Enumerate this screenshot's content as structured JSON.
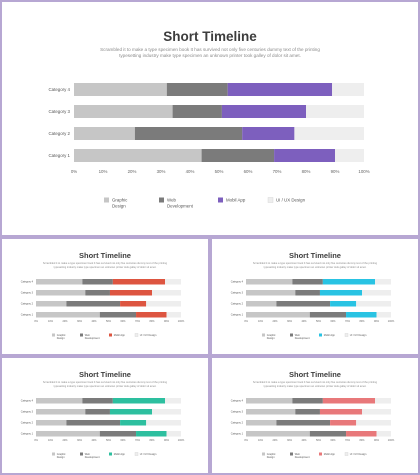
{
  "slide": {
    "title": "Short Timeline",
    "subtitle": "Scrambled it to make a type specimen book It has survived not only five centuries dummy text of the printing typesetting industry make type specimen an unknown printer took galley of dolor sit amet."
  },
  "chart_data": [
    {
      "type": "bar",
      "stacked": true,
      "orientation": "horizontal",
      "categories": [
        "Category 4",
        "Category 3",
        "Category 2",
        "Category 1"
      ],
      "series": [
        {
          "name": "Graphic Design",
          "values": [
            32,
            34,
            21,
            44
          ]
        },
        {
          "name": "Web Development",
          "values": [
            21,
            17,
            37,
            25
          ]
        },
        {
          "name": "Mobil App",
          "values": [
            36,
            29,
            18,
            21
          ]
        },
        {
          "name": "UI / UX Design",
          "values": [
            11,
            20,
            24,
            10
          ]
        }
      ],
      "xlim": [
        0,
        100
      ],
      "xticks": [
        "0%",
        "10%",
        "20%",
        "30%",
        "40%",
        "50%",
        "60%",
        "70%",
        "80%",
        "90%",
        "100%"
      ],
      "colors": [
        "#c6c6c6",
        "#7b7b7b",
        "#7d5fbe",
        "#eeeeee"
      ],
      "legend": "bottom"
    },
    {
      "type": "bar",
      "stacked": true,
      "orientation": "horizontal",
      "categories": [
        "Category 4",
        "Category 3",
        "Category 2",
        "Category 1"
      ],
      "series": [
        {
          "name": "Graphic Design",
          "values": [
            32,
            34,
            21,
            44
          ]
        },
        {
          "name": "Web Development",
          "values": [
            21,
            17,
            37,
            25
          ]
        },
        {
          "name": "Mobil App",
          "values": [
            36,
            29,
            18,
            21
          ]
        },
        {
          "name": "UI / UX Design",
          "values": [
            11,
            20,
            24,
            10
          ]
        }
      ],
      "xlim": [
        0,
        100
      ],
      "xticks": [
        "0%",
        "10%",
        "20%",
        "30%",
        "40%",
        "50%",
        "60%",
        "70%",
        "80%",
        "90%",
        "100%"
      ],
      "colors": [
        "#c6c6c6",
        "#7b7b7b",
        "#dd5540",
        "#eeeeee"
      ],
      "legend": "bottom"
    },
    {
      "type": "bar",
      "stacked": true,
      "orientation": "horizontal",
      "categories": [
        "Category 4",
        "Category 3",
        "Category 2",
        "Category 1"
      ],
      "series": [
        {
          "name": "Graphic Design",
          "values": [
            32,
            34,
            21,
            44
          ]
        },
        {
          "name": "Web Development",
          "values": [
            21,
            17,
            37,
            25
          ]
        },
        {
          "name": "Mobil App",
          "values": [
            36,
            29,
            18,
            21
          ]
        },
        {
          "name": "UI / UX Design",
          "values": [
            11,
            20,
            24,
            10
          ]
        }
      ],
      "xlim": [
        0,
        100
      ],
      "xticks": [
        "0%",
        "10%",
        "20%",
        "30%",
        "40%",
        "50%",
        "60%",
        "70%",
        "80%",
        "90%",
        "100%"
      ],
      "colors": [
        "#c6c6c6",
        "#7b7b7b",
        "#29c3e3",
        "#eeeeee"
      ],
      "legend": "bottom"
    },
    {
      "type": "bar",
      "stacked": true,
      "orientation": "horizontal",
      "categories": [
        "Category 4",
        "Category 3",
        "Category 2",
        "Category 1"
      ],
      "series": [
        {
          "name": "Graphic Design",
          "values": [
            32,
            34,
            21,
            44
          ]
        },
        {
          "name": "Web Development",
          "values": [
            21,
            17,
            37,
            25
          ]
        },
        {
          "name": "Mobil App",
          "values": [
            36,
            29,
            18,
            21
          ]
        },
        {
          "name": "UI / UX Design",
          "values": [
            11,
            20,
            24,
            10
          ]
        }
      ],
      "xlim": [
        0,
        100
      ],
      "xticks": [
        "0%",
        "10%",
        "20%",
        "30%",
        "40%",
        "50%",
        "60%",
        "70%",
        "80%",
        "90%",
        "100%"
      ],
      "colors": [
        "#c6c6c6",
        "#7b7b7b",
        "#2dbf9f",
        "#eeeeee"
      ],
      "legend": "bottom"
    },
    {
      "type": "bar",
      "stacked": true,
      "orientation": "horizontal",
      "categories": [
        "Category 4",
        "Category 3",
        "Category 2",
        "Category 1"
      ],
      "series": [
        {
          "name": "Graphic Design",
          "values": [
            32,
            34,
            21,
            44
          ]
        },
        {
          "name": "Web Development",
          "values": [
            21,
            17,
            37,
            25
          ]
        },
        {
          "name": "Mobil App",
          "values": [
            36,
            29,
            18,
            21
          ]
        },
        {
          "name": "UI / UX Design",
          "values": [
            11,
            20,
            24,
            10
          ]
        }
      ],
      "xlim": [
        0,
        100
      ],
      "xticks": [
        "0%",
        "10%",
        "20%",
        "30%",
        "40%",
        "50%",
        "60%",
        "70%",
        "80%",
        "90%",
        "100%"
      ],
      "colors": [
        "#c6c6c6",
        "#7b7b7b",
        "#e8787a",
        "#eeeeee"
      ],
      "legend": "bottom"
    }
  ]
}
